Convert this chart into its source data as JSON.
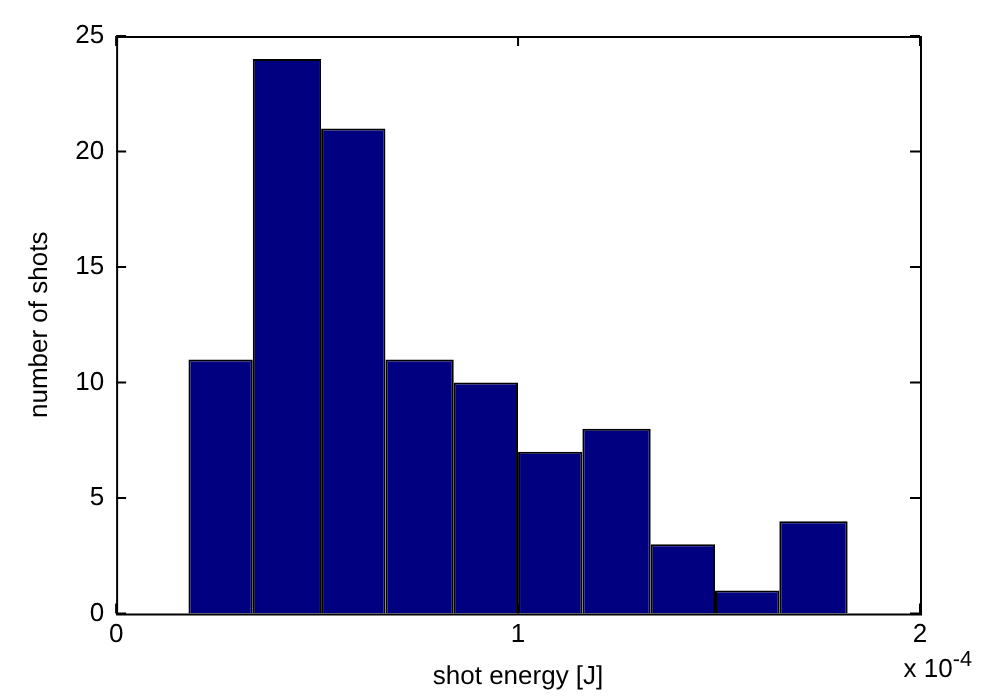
{
  "chart_data": {
    "type": "histogram",
    "xlabel": "shot energy [J]",
    "ylabel": "number of shots",
    "bins": [
      0.18,
      0.34,
      0.51,
      0.67,
      0.84,
      1.0,
      1.16,
      1.33,
      1.49,
      1.65,
      1.82
    ],
    "values": [
      11,
      24,
      21,
      11,
      10,
      7,
      8,
      3,
      1,
      4
    ],
    "color": "#000080",
    "xlim": [
      0,
      2
    ],
    "xticks": [
      0,
      1,
      2
    ],
    "ylim": [
      0,
      25
    ],
    "yticks": [
      0,
      5,
      10,
      15,
      20,
      25
    ],
    "grid": false,
    "legend": false,
    "annotations": [
      "x 10$^{-4}$"
    ]
  }
}
